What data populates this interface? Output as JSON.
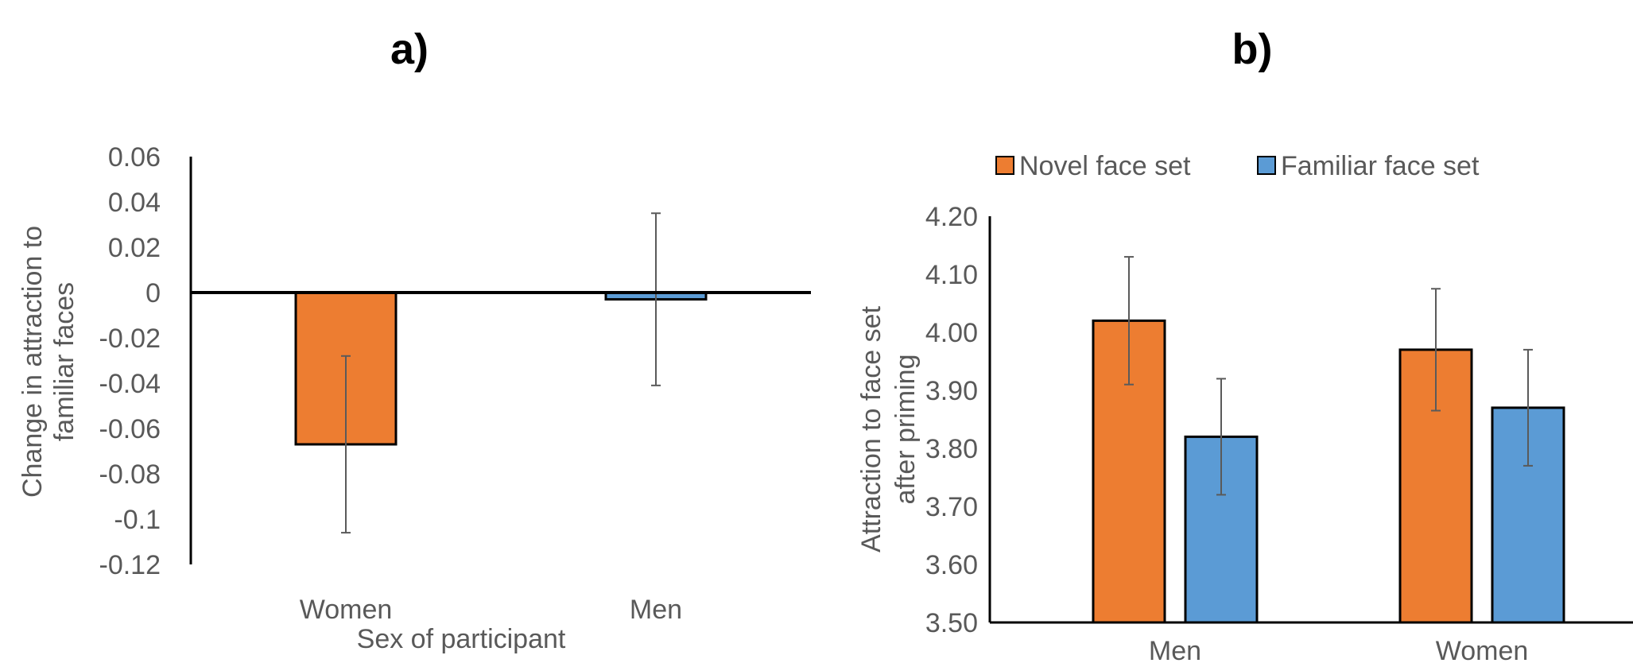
{
  "chart_data": [
    {
      "type": "bar",
      "panel_label": "a)",
      "categories": [
        "Women",
        "Men"
      ],
      "values": [
        -0.067,
        -0.003
      ],
      "error": [
        0.039,
        0.038
      ],
      "bar_colors": [
        "#ED7D31",
        "#5B9BD5"
      ],
      "xlabel": "Sex of participant",
      "ylabel_lines": [
        "Change in attraction to",
        "familiar faces"
      ],
      "ylim": [
        -0.12,
        0.06
      ],
      "yticks": [
        "0.06",
        "0.04",
        "0.02",
        "0",
        "-0.02",
        "-0.04",
        "-0.06",
        "-0.08",
        "-0.1",
        "-0.12"
      ],
      "grid": false
    },
    {
      "type": "bar",
      "panel_label": "b)",
      "categories": [
        "Men",
        "Women"
      ],
      "series": [
        {
          "name": "Novel face set",
          "color": "#ED7D31",
          "values": [
            4.02,
            3.97
          ],
          "error": [
            0.11,
            0.105
          ]
        },
        {
          "name": "Familiar face set",
          "color": "#5B9BD5",
          "values": [
            3.82,
            3.87
          ],
          "error": [
            0.1,
            0.1
          ]
        }
      ],
      "ylabel_lines": [
        "Attraction to face set",
        "after priming"
      ],
      "ylim": [
        3.5,
        4.2
      ],
      "yticks": [
        "4.20",
        "4.10",
        "4.00",
        "3.90",
        "3.80",
        "3.70",
        "3.60",
        "3.50"
      ],
      "legend": "top",
      "grid": false
    }
  ]
}
